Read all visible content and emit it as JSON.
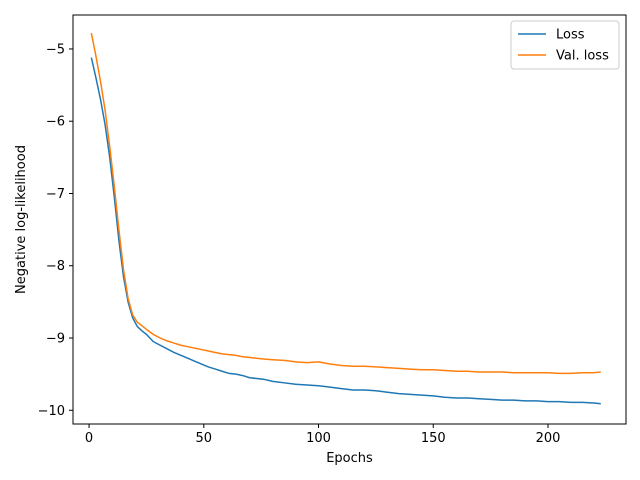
{
  "chart_data": {
    "type": "line",
    "xlabel": "Epochs",
    "ylabel": "Negative log-likelihood",
    "xlim": [
      -7,
      234
    ],
    "ylim": [
      -10.19,
      -4.53
    ],
    "xticks": [
      0,
      50,
      100,
      150,
      200
    ],
    "xtick_labels": [
      "0",
      "50",
      "100",
      "150",
      "200"
    ],
    "yticks": [
      -10,
      -9,
      -8,
      -7,
      -6,
      -5
    ],
    "ytick_labels": [
      "−10",
      "−9",
      "−8",
      "−7",
      "−6",
      "−5"
    ],
    "grid": false,
    "legend_position": "top-right",
    "series": [
      {
        "name": "Loss",
        "color": "#1f77b4",
        "x": [
          1,
          3,
          5,
          7,
          9,
          11,
          13,
          15,
          17,
          19,
          21,
          23,
          25,
          28,
          31,
          34,
          37,
          40,
          43,
          46,
          49,
          52,
          55,
          58,
          61,
          64,
          67,
          70,
          73,
          76,
          80,
          85,
          90,
          95,
          100,
          105,
          110,
          115,
          120,
          125,
          130,
          135,
          140,
          145,
          150,
          155,
          160,
          165,
          170,
          175,
          180,
          185,
          190,
          195,
          200,
          205,
          210,
          215,
          220,
          223
        ],
        "y": [
          -5.12,
          -5.4,
          -5.7,
          -6.05,
          -6.5,
          -7.05,
          -7.65,
          -8.15,
          -8.5,
          -8.72,
          -8.84,
          -8.9,
          -8.95,
          -9.05,
          -9.1,
          -9.15,
          -9.2,
          -9.24,
          -9.28,
          -9.32,
          -9.36,
          -9.4,
          -9.43,
          -9.46,
          -9.49,
          -9.5,
          -9.52,
          -9.55,
          -9.56,
          -9.57,
          -9.6,
          -9.62,
          -9.64,
          -9.65,
          -9.66,
          -9.68,
          -9.7,
          -9.72,
          -9.72,
          -9.73,
          -9.75,
          -9.77,
          -9.78,
          -9.79,
          -9.8,
          -9.82,
          -9.83,
          -9.83,
          -9.84,
          -9.85,
          -9.86,
          -9.86,
          -9.87,
          -9.87,
          -9.88,
          -9.88,
          -9.89,
          -9.89,
          -9.9,
          -9.91
        ]
      },
      {
        "name": "Val. loss",
        "color": "#ff7f0e",
        "x": [
          1,
          3,
          5,
          7,
          9,
          11,
          13,
          15,
          17,
          19,
          21,
          23,
          25,
          28,
          31,
          34,
          37,
          40,
          43,
          46,
          49,
          52,
          55,
          58,
          61,
          64,
          67,
          70,
          73,
          76,
          80,
          85,
          90,
          95,
          100,
          105,
          110,
          115,
          120,
          125,
          130,
          135,
          140,
          145,
          150,
          155,
          160,
          165,
          170,
          175,
          180,
          185,
          190,
          195,
          200,
          205,
          210,
          215,
          220,
          223
        ],
        "y": [
          -4.78,
          -5.1,
          -5.45,
          -5.85,
          -6.35,
          -6.9,
          -7.5,
          -8.05,
          -8.45,
          -8.68,
          -8.78,
          -8.83,
          -8.88,
          -8.95,
          -9.0,
          -9.04,
          -9.07,
          -9.1,
          -9.12,
          -9.14,
          -9.16,
          -9.18,
          -9.2,
          -9.22,
          -9.23,
          -9.24,
          -9.26,
          -9.27,
          -9.28,
          -9.29,
          -9.3,
          -9.31,
          -9.33,
          -9.34,
          -9.33,
          -9.36,
          -9.38,
          -9.39,
          -9.39,
          -9.4,
          -9.41,
          -9.42,
          -9.43,
          -9.44,
          -9.44,
          -9.45,
          -9.46,
          -9.46,
          -9.47,
          -9.47,
          -9.47,
          -9.48,
          -9.48,
          -9.48,
          -9.48,
          -9.49,
          -9.49,
          -9.48,
          -9.48,
          -9.47
        ]
      }
    ]
  }
}
